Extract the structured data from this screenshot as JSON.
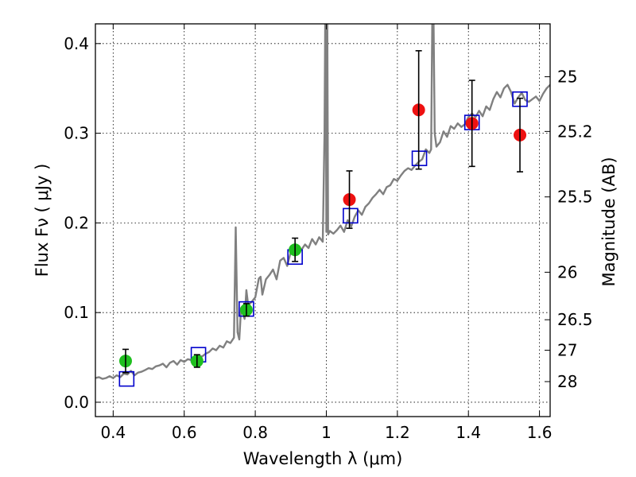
{
  "chart_data": {
    "type": "scatter",
    "xlabel": "Wavelength  λ (μm)",
    "ylabel": "Flux  Fν  ( μJy )",
    "ylabel_right": "Magnitude (AB)",
    "xlim": [
      0.35,
      1.63
    ],
    "ylim": [
      -0.016,
      0.422
    ],
    "grid": true,
    "x_ticks": [
      {
        "value": 0.4,
        "label": "0.4"
      },
      {
        "value": 0.6,
        "label": "0.6"
      },
      {
        "value": 0.8,
        "label": "0.8"
      },
      {
        "value": 1.0,
        "label": "1"
      },
      {
        "value": 1.2,
        "label": "1.2"
      },
      {
        "value": 1.4,
        "label": "1.4"
      },
      {
        "value": 1.6,
        "label": "1.6"
      }
    ],
    "y_ticks": [
      {
        "value": 0.0,
        "label": "0.0"
      },
      {
        "value": 0.1,
        "label": "0.1"
      },
      {
        "value": 0.2,
        "label": "0.2"
      },
      {
        "value": 0.3,
        "label": "0.3"
      },
      {
        "value": 0.4,
        "label": "0.4"
      }
    ],
    "right_ticks": [
      {
        "flux": 0.363,
        "label": "25"
      },
      {
        "flux": 0.302,
        "label": "25.2"
      },
      {
        "flux": 0.229,
        "label": "25.5"
      },
      {
        "flux": 0.145,
        "label": "26"
      },
      {
        "flux": 0.092,
        "label": "26.5"
      },
      {
        "flux": 0.058,
        "label": "27"
      },
      {
        "flux": 0.023,
        "label": "28"
      }
    ],
    "series": [
      {
        "kind": "spectrum",
        "color": "#808080",
        "x": [
          0.35,
          0.36,
          0.37,
          0.38,
          0.39,
          0.4,
          0.41,
          0.42,
          0.43,
          0.44,
          0.45,
          0.46,
          0.47,
          0.48,
          0.49,
          0.5,
          0.51,
          0.52,
          0.53,
          0.54,
          0.55,
          0.56,
          0.57,
          0.58,
          0.59,
          0.6,
          0.61,
          0.62,
          0.63,
          0.64,
          0.65,
          0.66,
          0.67,
          0.68,
          0.69,
          0.7,
          0.71,
          0.72,
          0.73,
          0.74,
          0.745,
          0.75,
          0.755,
          0.76,
          0.77,
          0.775,
          0.78,
          0.79,
          0.8,
          0.81,
          0.815,
          0.82,
          0.83,
          0.84,
          0.85,
          0.86,
          0.87,
          0.88,
          0.89,
          0.9,
          0.91,
          0.92,
          0.93,
          0.94,
          0.95,
          0.96,
          0.97,
          0.98,
          0.99,
          0.995,
          0.998,
          1.0,
          1.002,
          1.005,
          1.01,
          1.02,
          1.03,
          1.04,
          1.05,
          1.06,
          1.07,
          1.08,
          1.09,
          1.1,
          1.11,
          1.12,
          1.13,
          1.14,
          1.15,
          1.16,
          1.17,
          1.18,
          1.19,
          1.2,
          1.21,
          1.22,
          1.23,
          1.24,
          1.25,
          1.26,
          1.27,
          1.28,
          1.29,
          1.295,
          1.3,
          1.305,
          1.31,
          1.32,
          1.33,
          1.34,
          1.35,
          1.36,
          1.37,
          1.38,
          1.39,
          1.4,
          1.41,
          1.42,
          1.43,
          1.44,
          1.45,
          1.46,
          1.47,
          1.48,
          1.49,
          1.5,
          1.51,
          1.52,
          1.53,
          1.54,
          1.55,
          1.56,
          1.57,
          1.58,
          1.59,
          1.6,
          1.61,
          1.62,
          1.63
        ],
        "y": [
          0.027,
          0.028,
          0.026,
          0.027,
          0.029,
          0.027,
          0.03,
          0.028,
          0.032,
          0.031,
          0.035,
          0.03,
          0.033,
          0.034,
          0.036,
          0.038,
          0.037,
          0.04,
          0.041,
          0.043,
          0.039,
          0.044,
          0.046,
          0.042,
          0.047,
          0.045,
          0.048,
          0.047,
          0.049,
          0.052,
          0.051,
          0.054,
          0.056,
          0.06,
          0.058,
          0.063,
          0.061,
          0.068,
          0.066,
          0.072,
          0.195,
          0.078,
          0.07,
          0.105,
          0.093,
          0.125,
          0.108,
          0.112,
          0.117,
          0.138,
          0.14,
          0.12,
          0.137,
          0.142,
          0.148,
          0.137,
          0.158,
          0.161,
          0.152,
          0.168,
          0.165,
          0.174,
          0.17,
          0.176,
          0.172,
          0.182,
          0.176,
          0.184,
          0.179,
          0.3,
          0.5,
          0.19,
          0.5,
          0.187,
          0.191,
          0.188,
          0.192,
          0.197,
          0.19,
          0.203,
          0.196,
          0.207,
          0.214,
          0.209,
          0.218,
          0.222,
          0.228,
          0.232,
          0.237,
          0.232,
          0.24,
          0.242,
          0.249,
          0.247,
          0.253,
          0.258,
          0.261,
          0.259,
          0.264,
          0.268,
          0.271,
          0.282,
          0.278,
          0.282,
          0.5,
          0.3,
          0.285,
          0.29,
          0.302,
          0.296,
          0.308,
          0.305,
          0.311,
          0.307,
          0.31,
          0.318,
          0.322,
          0.318,
          0.325,
          0.319,
          0.33,
          0.326,
          0.338,
          0.346,
          0.34,
          0.35,
          0.354,
          0.346,
          0.333,
          0.34,
          0.345,
          0.337,
          0.335,
          0.338,
          0.341,
          0.336,
          0.344,
          0.35,
          0.354
        ]
      },
      {
        "kind": "model-photometry",
        "marker": "square",
        "color": "#0000cc",
        "x": [
          0.438,
          0.64,
          0.775,
          0.912,
          1.068,
          1.262,
          1.41,
          1.545
        ],
        "y": [
          0.026,
          0.053,
          0.104,
          0.162,
          0.208,
          0.272,
          0.312,
          0.338
        ]
      },
      {
        "kind": "observed-optical",
        "marker": "circle",
        "color": "#1fbf1f",
        "x": [
          0.435,
          0.636,
          0.775,
          0.912
        ],
        "y": [
          0.046,
          0.046,
          0.103,
          0.17
        ],
        "err": [
          0.013,
          0.007,
          0.007,
          0.013
        ]
      },
      {
        "kind": "observed-nir",
        "marker": "circle",
        "color": "#ee1111",
        "x": [
          1.065,
          1.26,
          1.41,
          1.545
        ],
        "y": [
          0.226,
          0.326,
          0.311,
          0.298
        ],
        "err": [
          0.032,
          0.066,
          0.048,
          0.041
        ]
      }
    ]
  }
}
